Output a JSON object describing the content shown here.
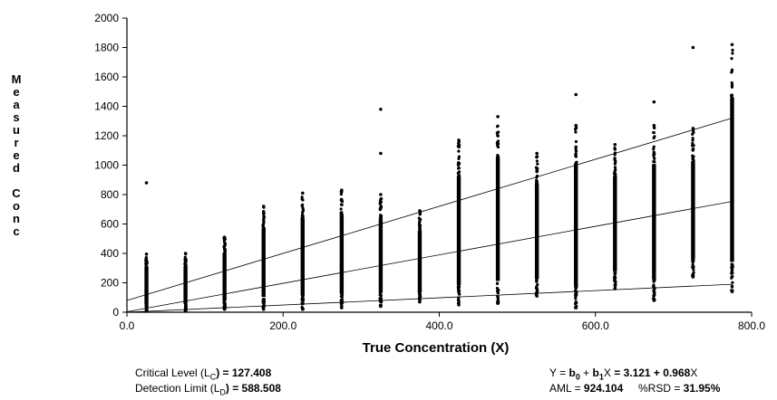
{
  "chart_data": {
    "type": "scatter",
    "xlabel": "True Concentration (X)",
    "ylabel": "Measured Conc",
    "ylabel_words": [
      "Measured",
      "Conc"
    ],
    "xlim": [
      0,
      800
    ],
    "ylim": [
      0,
      2000
    ],
    "xticks": [
      0,
      200,
      400,
      600,
      800
    ],
    "xtick_labels": [
      "0.0",
      "200.0",
      "400.0",
      "600.0",
      "800.0"
    ],
    "yticks": [
      0,
      200,
      400,
      600,
      800,
      1000,
      1200,
      1400,
      1600,
      1800,
      2000
    ],
    "ytick_labels": [
      "0",
      "200",
      "400",
      "600",
      "800",
      "1000",
      "1200",
      "1400",
      "1600",
      "1800",
      "2000"
    ],
    "grid": false,
    "columns": [
      {
        "x": 25,
        "min": 10,
        "max": 395,
        "outliers": [
          880
        ]
      },
      {
        "x": 75,
        "min": 10,
        "max": 400,
        "outliers": []
      },
      {
        "x": 125,
        "min": 20,
        "max": 510,
        "outliers": []
      },
      {
        "x": 175,
        "min": 20,
        "max": 720,
        "outliers": []
      },
      {
        "x": 225,
        "min": 20,
        "max": 810,
        "outliers": []
      },
      {
        "x": 275,
        "min": 30,
        "max": 830,
        "outliers": []
      },
      {
        "x": 325,
        "min": 40,
        "max": 800,
        "outliers": [
          1080,
          1380
        ]
      },
      {
        "x": 375,
        "min": 70,
        "max": 690,
        "outliers": []
      },
      {
        "x": 425,
        "min": 50,
        "max": 1170,
        "outliers": []
      },
      {
        "x": 475,
        "min": 60,
        "max": 1330,
        "outliers": []
      },
      {
        "x": 525,
        "min": 110,
        "max": 1080,
        "outliers": []
      },
      {
        "x": 575,
        "min": 30,
        "max": 1270,
        "outliers": [
          1480
        ]
      },
      {
        "x": 625,
        "min": 160,
        "max": 1140,
        "outliers": []
      },
      {
        "x": 675,
        "min": 80,
        "max": 1270,
        "outliers": [
          1430
        ]
      },
      {
        "x": 725,
        "min": 240,
        "max": 1250,
        "outliers": [
          1800
        ]
      },
      {
        "x": 775,
        "min": 140,
        "max": 1820,
        "outliers": []
      }
    ],
    "lines": [
      {
        "points": [
          [
            0,
            80
          ],
          [
            775,
            1320
          ]
        ]
      },
      {
        "points": [
          [
            0,
            3.121
          ],
          [
            775,
            753.3
          ]
        ]
      },
      {
        "points": [
          [
            0,
            0
          ],
          [
            775,
            190
          ]
        ]
      }
    ]
  },
  "stats": {
    "lc_label": "Critical Level (L",
    "lc_sub": "C",
    "lc_eq": ") = ",
    "lc_value": "127.408",
    "ld_label": "Detection Limit (L",
    "ld_sub": "D",
    "ld_eq": ") = ",
    "ld_value": "588.508",
    "eq_lhs": "Y = ",
    "eq_b0": "b",
    "eq_b0_sub": "0",
    "eq_plus": " + ",
    "eq_b1": "b",
    "eq_b1_sub": "1",
    "eq_x": "X",
    "eq_rhs_bold": " = 3.121 + 0.968",
    "eq_rhs_x": "X",
    "aml_label": "AML = ",
    "aml_value": "924.104",
    "rsd_label": "%RSD = ",
    "rsd_value": "31.95%"
  }
}
